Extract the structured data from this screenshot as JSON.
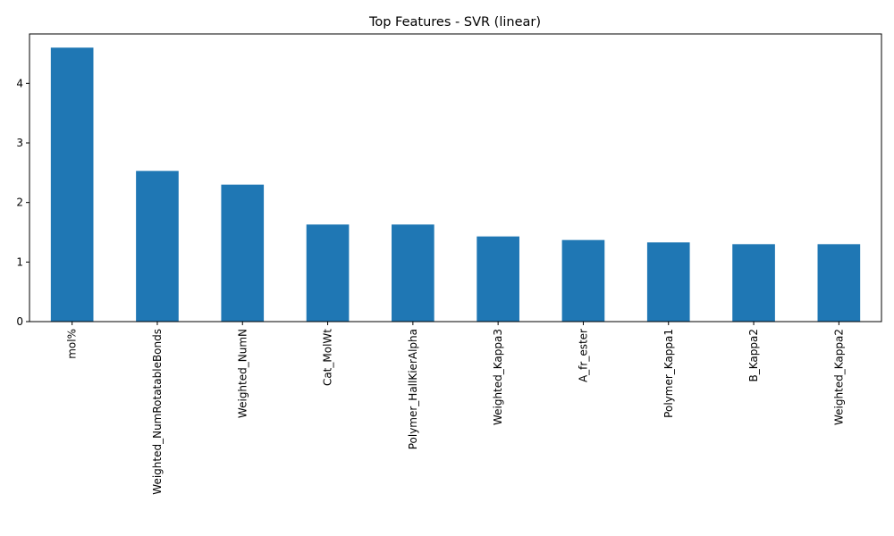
{
  "chart_data": {
    "type": "bar",
    "title": "Top Features - SVR (linear)",
    "xlabel": "",
    "ylabel": "",
    "categories": [
      "mol%",
      "Weighted_NumRotatableBonds",
      "Weighted_NumN",
      "Cat_MolWt",
      "Polymer_HallKierAlpha",
      "Weighted_Kappa3",
      "A_fr_ester",
      "Polymer_Kappa1",
      "B_Kappa2",
      "Weighted_Kappa2"
    ],
    "values": [
      4.6,
      2.53,
      2.3,
      1.63,
      1.63,
      1.43,
      1.37,
      1.33,
      1.3,
      1.3
    ],
    "ylim": [
      0,
      4.83
    ],
    "yticks": [
      0,
      1,
      2,
      3,
      4
    ],
    "ytick_labels": [
      "0",
      "1",
      "2",
      "3",
      "4"
    ],
    "bar_color": "#1f77b4",
    "grid": false,
    "legend": "none"
  }
}
